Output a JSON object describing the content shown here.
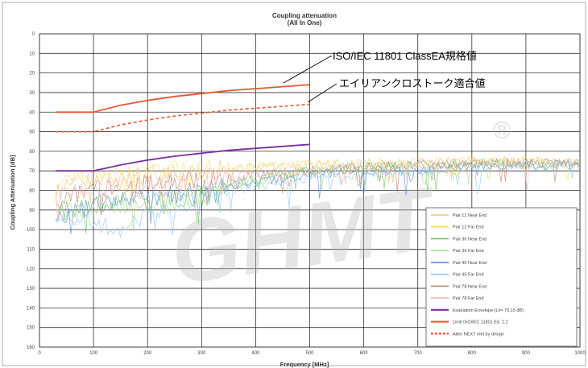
{
  "chart_data": {
    "type": "line",
    "title": "Coupling attenuation",
    "subtitle": "(All In One)",
    "xlabel": "Frequency [MHz]",
    "ylabel": "Coupling Attenuation [dB]",
    "xlim": [
      0,
      1000
    ],
    "ylim": [
      0,
      160
    ],
    "y_inverted": true,
    "x_ticks": [
      "0",
      "100",
      "200",
      "300",
      "400",
      "500",
      "600",
      "700",
      "800",
      "900",
      "1000"
    ],
    "y_ticks": [
      "0",
      "10",
      "20",
      "30",
      "40",
      "50",
      "60",
      "70",
      "80",
      "90",
      "100",
      "110",
      "120",
      "130",
      "140",
      "150",
      "160"
    ],
    "grid": true,
    "legend_position": "bottom-right",
    "series": [
      {
        "name": "Pair 12 Near End",
        "color": "#f2c27a",
        "style": "noisy",
        "x": [
          30,
          50,
          80,
          100,
          150,
          200,
          250,
          300,
          350,
          400,
          450,
          500,
          600,
          700,
          800,
          900,
          1000
        ],
        "y": [
          82,
          78,
          76,
          75,
          73,
          72,
          71,
          70,
          69,
          68,
          68,
          67,
          66,
          66,
          65,
          65,
          65
        ]
      },
      {
        "name": "Pair 12 Far End",
        "color": "#f5de6a",
        "style": "noisy",
        "x": [
          30,
          50,
          80,
          100,
          150,
          200,
          250,
          300,
          350,
          400,
          450,
          500,
          600,
          700,
          800,
          900,
          1000
        ],
        "y": [
          80,
          76,
          74,
          73,
          72,
          71,
          70,
          69,
          68,
          68,
          67,
          67,
          66,
          66,
          65,
          65,
          66
        ]
      },
      {
        "name": "Pair 36 Near End",
        "color": "#6fc36a",
        "style": "noisy",
        "x": [
          30,
          50,
          80,
          100,
          150,
          200,
          250,
          300,
          350,
          400,
          450,
          500,
          600,
          700,
          800,
          900,
          1000
        ],
        "y": [
          92,
          90,
          88,
          87,
          86,
          85,
          84,
          83,
          78,
          74,
          72,
          70,
          68,
          67,
          66,
          66,
          66
        ]
      },
      {
        "name": "Pair 36 Far End",
        "color": "#a9d889",
        "style": "noisy",
        "x": [
          30,
          50,
          80,
          100,
          150,
          200,
          250,
          300,
          350,
          400,
          450,
          500,
          600,
          700,
          800,
          900,
          1000
        ],
        "y": [
          94,
          91,
          89,
          88,
          88,
          87,
          85,
          82,
          78,
          75,
          72,
          70,
          68,
          67,
          66,
          66,
          66
        ]
      },
      {
        "name": "Pair 45 Near End",
        "color": "#5a8fd6",
        "style": "noisy",
        "x": [
          30,
          50,
          80,
          100,
          150,
          200,
          250,
          300,
          350,
          400,
          450,
          500,
          600,
          700,
          800,
          900,
          1000
        ],
        "y": [
          96,
          92,
          90,
          88,
          86,
          84,
          82,
          80,
          78,
          76,
          74,
          72,
          70,
          69,
          68,
          67,
          67
        ]
      },
      {
        "name": "Pair 45 Far End",
        "color": "#8cc7ee",
        "style": "noisy",
        "x": [
          30,
          50,
          80,
          100,
          150,
          200,
          250,
          300,
          350,
          400,
          450,
          500,
          600,
          700,
          800,
          900,
          1000
        ],
        "y": [
          98,
          96,
          94,
          98,
          100,
          92,
          88,
          84,
          80,
          78,
          76,
          74,
          72,
          70,
          69,
          68,
          68
        ]
      },
      {
        "name": "Pair 78 Near End",
        "color": "#b5876e",
        "style": "noisy",
        "x": [
          30,
          50,
          80,
          100,
          150,
          200,
          250,
          300,
          350,
          400,
          450,
          500,
          600,
          700,
          800,
          900,
          1000
        ],
        "y": [
          86,
          84,
          82,
          80,
          78,
          77,
          76,
          75,
          74,
          72,
          71,
          70,
          68,
          67,
          66,
          66,
          66
        ]
      },
      {
        "name": "Pair 78 Far End",
        "color": "#f1b8b8",
        "style": "noisy",
        "x": [
          30,
          50,
          80,
          100,
          150,
          200,
          250,
          300,
          350,
          400,
          450,
          500,
          600,
          700,
          800,
          900,
          1000
        ],
        "y": [
          84,
          82,
          80,
          79,
          77,
          76,
          75,
          74,
          73,
          72,
          71,
          70,
          68,
          67,
          66,
          66,
          66
        ]
      },
      {
        "name": "Evaluation Envelope (Lk= 70,15 dB)",
        "color": "#7b2f9e",
        "style": "thick",
        "x": [
          30,
          100,
          150,
          200,
          250,
          300,
          350,
          400,
          450,
          500
        ],
        "y": [
          70,
          70,
          67,
          64.5,
          62.5,
          61,
          59.5,
          58.5,
          57.5,
          56.5
        ]
      },
      {
        "name": "Limit ISO/IEC 11801 Ed. 2.2",
        "color": "#e8582f",
        "style": "thick",
        "x": [
          30,
          100,
          150,
          200,
          250,
          300,
          350,
          400,
          450,
          500
        ],
        "y": [
          40,
          40,
          36.5,
          34,
          32,
          30.5,
          29,
          28,
          27,
          26
        ]
      },
      {
        "name": "Alien NEXT met by design",
        "color": "#e8582f",
        "style": "dashed",
        "x": [
          30,
          100,
          150,
          200,
          250,
          300,
          350,
          400,
          450,
          500
        ],
        "y": [
          50,
          50,
          46.5,
          44,
          42,
          40.5,
          39,
          38,
          37,
          36
        ]
      }
    ],
    "annotations": [
      {
        "text": "ISO/IEC 11801 ClassEA規格値",
        "target_x": 350,
        "target_y": 28
      },
      {
        "text": "エイリアンクロストーク適合値",
        "target_x": 380,
        "target_y": 36
      }
    ],
    "watermark": {
      "text": "GHMT",
      "mark": "®"
    }
  }
}
